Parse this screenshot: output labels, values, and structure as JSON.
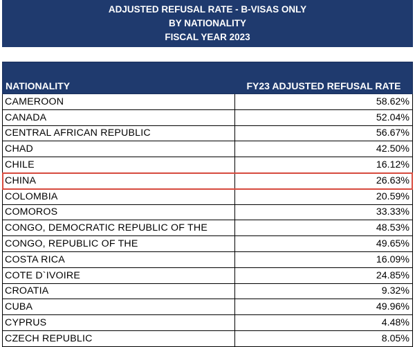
{
  "title": {
    "line1": "ADJUSTED REFUSAL RATE - B-VISAS ONLY",
    "line2": "BY NATIONALITY",
    "line3": "FISCAL YEAR 2023"
  },
  "table": {
    "headers": {
      "nationality": "NATIONALITY",
      "rate": "FY23 ADJUSTED REFUSAL RATE"
    },
    "rows": [
      {
        "nationality": "CAMEROON",
        "rate": "58.62%"
      },
      {
        "nationality": "CANADA",
        "rate": "52.04%"
      },
      {
        "nationality": "CENTRAL AFRICAN REPUBLIC",
        "rate": "56.67%"
      },
      {
        "nationality": "CHAD",
        "rate": "42.50%"
      },
      {
        "nationality": "CHILE",
        "rate": "16.12%"
      },
      {
        "nationality": "CHINA",
        "rate": "26.63%",
        "highlighted": true
      },
      {
        "nationality": "COLOMBIA",
        "rate": "20.59%"
      },
      {
        "nationality": "COMOROS",
        "rate": "33.33%"
      },
      {
        "nationality": "CONGO, DEMOCRATIC REPUBLIC OF THE",
        "rate": "48.53%"
      },
      {
        "nationality": "CONGO, REPUBLIC OF THE",
        "rate": "49.65%"
      },
      {
        "nationality": "COSTA RICA",
        "rate": "16.09%"
      },
      {
        "nationality": "COTE D`IVOIRE",
        "rate": "24.85%"
      },
      {
        "nationality": "CROATIA",
        "rate": "9.32%"
      },
      {
        "nationality": "CUBA",
        "rate": "49.96%"
      },
      {
        "nationality": "CYPRUS",
        "rate": "4.48%"
      },
      {
        "nationality": "CZECH REPUBLIC",
        "rate": "8.05%"
      }
    ]
  },
  "colors": {
    "header_bg": "#1f3a6e",
    "header_text": "#ffffff",
    "highlight_border": "#d64a3e"
  }
}
